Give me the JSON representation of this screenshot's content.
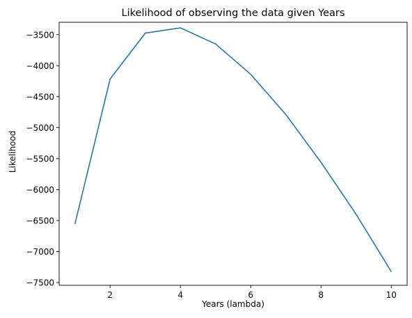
{
  "colors": {
    "line": "#1f77b4",
    "axis": "#000000",
    "background": "#ffffff"
  },
  "chart_data": {
    "type": "line",
    "title": "Likelihood of observing the data given Years",
    "xlabel": "Years (lambda)",
    "ylabel": "Likelihood",
    "xlim": [
      0.55,
      10.45
    ],
    "ylim": [
      -7545,
      -3300
    ],
    "xticks": [
      2,
      4,
      6,
      8,
      10
    ],
    "yticks": [
      -7500,
      -7000,
      -6500,
      -6000,
      -5500,
      -5000,
      -4500,
      -4000,
      -3500
    ],
    "grid": false,
    "legend": "none",
    "series": [
      {
        "x": [
          1,
          2,
          3,
          4,
          5,
          6,
          7,
          8,
          9,
          10
        ],
        "values": [
          -6555,
          -4215,
          -3475,
          -3390,
          -3650,
          -4140,
          -4790,
          -5560,
          -6400,
          -7325
        ]
      }
    ]
  }
}
